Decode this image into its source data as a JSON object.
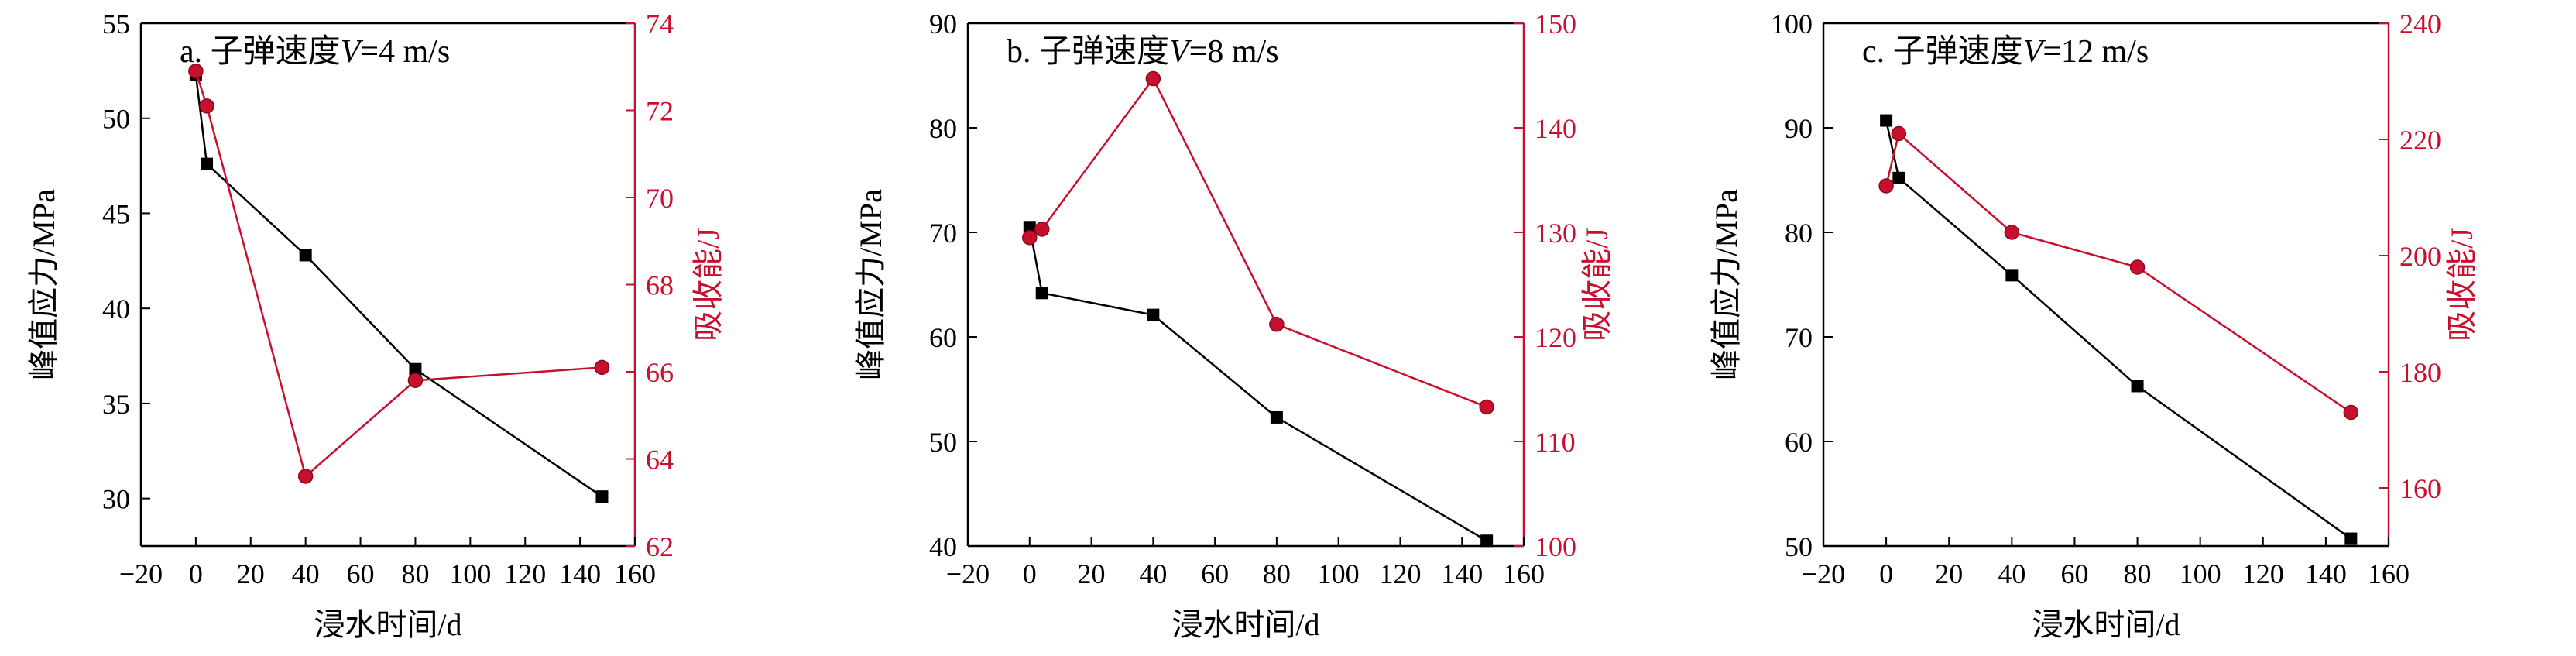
{
  "chart_data": [
    {
      "type": "line",
      "title": "a. 子弹速度V=4 m/s",
      "title_parts": [
        "a. 子弹速度",
        "V",
        "=4 m/s"
      ],
      "xlabel": "浸水时间/d",
      "ylabel_left": "峰值应力/MPa",
      "ylabel_right": "吸收能/J",
      "xlim": [
        -20,
        160
      ],
      "xticks": [
        -20,
        0,
        20,
        40,
        60,
        80,
        100,
        120,
        140,
        160
      ],
      "ylim_left": [
        27.5,
        55
      ],
      "yticks_left": [
        30,
        35,
        40,
        45,
        50,
        55
      ],
      "ylim_right": [
        62,
        74
      ],
      "yticks_right": [
        62,
        64,
        66,
        68,
        70,
        72,
        74
      ],
      "grid": false,
      "series": [
        {
          "axis": "left",
          "color": "#000000",
          "marker": "square",
          "x": [
            0,
            4,
            40,
            80,
            148
          ],
          "y": [
            52.3,
            47.6,
            42.8,
            36.8,
            30.1
          ]
        },
        {
          "axis": "right",
          "color": "#c8102e",
          "marker": "circle",
          "x": [
            0,
            4,
            40,
            80,
            148
          ],
          "y": [
            72.9,
            72.1,
            63.6,
            65.8,
            66.1
          ]
        }
      ]
    },
    {
      "type": "line",
      "title": "b. 子弹速度V=8 m/s",
      "title_parts": [
        "b. 子弹速度",
        "V",
        "=8 m/s"
      ],
      "xlabel": "浸水时间/d",
      "ylabel_left": "峰值应力/MPa",
      "ylabel_right": "吸收能/J",
      "xlim": [
        -20,
        160
      ],
      "xticks": [
        -20,
        0,
        20,
        40,
        60,
        80,
        100,
        120,
        140,
        160
      ],
      "ylim_left": [
        40,
        90
      ],
      "yticks_left": [
        40,
        50,
        60,
        70,
        80,
        90
      ],
      "ylim_right": [
        100,
        150
      ],
      "yticks_right": [
        100,
        110,
        120,
        130,
        140,
        150
      ],
      "grid": false,
      "series": [
        {
          "axis": "left",
          "color": "#000000",
          "marker": "square",
          "x": [
            0,
            4,
            40,
            80,
            148
          ],
          "y": [
            70.5,
            64.2,
            62.1,
            52.3,
            40.5
          ]
        },
        {
          "axis": "right",
          "color": "#c8102e",
          "marker": "circle",
          "x": [
            0,
            4,
            40,
            80,
            148
          ],
          "y": [
            129.5,
            130.3,
            144.7,
            121.2,
            113.3
          ]
        }
      ]
    },
    {
      "type": "line",
      "title": "c. 子弹速度V=12 m/s",
      "title_parts": [
        "c. 子弹速度",
        "V",
        "=12 m/s"
      ],
      "xlabel": "浸水时间/d",
      "ylabel_left": "峰值应力/MPa",
      "ylabel_right": "吸收能/J",
      "xlim": [
        -20,
        160
      ],
      "xticks": [
        -20,
        0,
        20,
        40,
        60,
        80,
        100,
        120,
        140,
        160
      ],
      "ylim_left": [
        50,
        100
      ],
      "yticks_left": [
        50,
        60,
        70,
        80,
        90,
        100
      ],
      "ylim_right": [
        150,
        240
      ],
      "yticks_right": [
        160,
        180,
        200,
        220,
        240
      ],
      "grid": false,
      "series": [
        {
          "axis": "left",
          "color": "#000000",
          "marker": "square",
          "x": [
            0,
            4,
            40,
            80,
            148
          ],
          "y": [
            90.7,
            85.2,
            75.9,
            65.3,
            50.7
          ]
        },
        {
          "axis": "right",
          "color": "#c8102e",
          "marker": "circle",
          "x": [
            0,
            4,
            40,
            80,
            148
          ],
          "y": [
            212,
            221,
            204,
            198,
            173
          ]
        }
      ]
    }
  ]
}
